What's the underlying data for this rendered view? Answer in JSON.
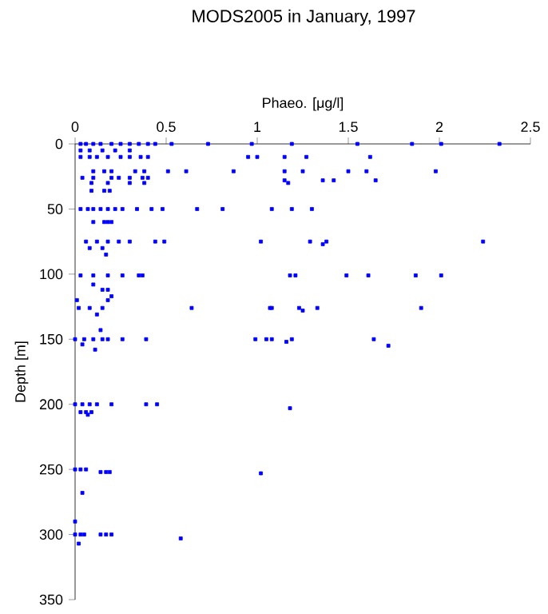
{
  "chart_data": {
    "type": "scatter",
    "title": "MODS2005 in January, 1997",
    "xlabel": "Phaeo. [μg/l]",
    "ylabel": "Depth [m]",
    "x": [
      0.03,
      0.06,
      0.1,
      0.14,
      0.2,
      0.25,
      0.3,
      0.35,
      0.4,
      0.44,
      0.53,
      0.73,
      0.97,
      1.19,
      1.55,
      1.85,
      2.01,
      2.33,
      0.03,
      0.08,
      0.15,
      0.22,
      0.3,
      0.03,
      0.08,
      0.12,
      0.18,
      0.25,
      0.3,
      0.36,
      0.4,
      0.95,
      1.0,
      1.15,
      1.27,
      1.62,
      0.1,
      0.16,
      0.2,
      0.33,
      0.38,
      0.51,
      0.61,
      0.87,
      1.15,
      1.25,
      1.5,
      1.6,
      1.98,
      0.04,
      0.1,
      0.2,
      0.24,
      0.3,
      0.37,
      0.4,
      1.15,
      1.36,
      1.42,
      1.65,
      0.09,
      0.18,
      0.3,
      0.38,
      1.17,
      0.09,
      0.16,
      0.19,
      0.03,
      0.07,
      0.1,
      0.14,
      0.18,
      0.22,
      0.26,
      0.34,
      0.42,
      0.48,
      0.67,
      0.81,
      1.08,
      1.19,
      1.3,
      0.1,
      0.16,
      0.18,
      0.2,
      0.06,
      0.12,
      0.18,
      0.24,
      0.3,
      0.44,
      0.49,
      1.02,
      1.29,
      1.38,
      1.36,
      2.24,
      0.08,
      0.15,
      0.17,
      0.03,
      0.1,
      0.18,
      0.26,
      0.35,
      0.37,
      1.18,
      1.21,
      1.49,
      1.61,
      1.87,
      2.01,
      0.1,
      0.15,
      0.18,
      0.2,
      0.01,
      0.02,
      0.08,
      0.15,
      0.18,
      0.64,
      1.07,
      1.23,
      1.08,
      1.33,
      1.25,
      1.9,
      0.12,
      0.0,
      0.05,
      0.1,
      0.15,
      0.18,
      0.26,
      0.39,
      0.99,
      1.05,
      1.16,
      1.08,
      1.19,
      1.64,
      1.72,
      0.11,
      0.14,
      0.04,
      0.0,
      0.04,
      0.08,
      0.12,
      0.2,
      0.39,
      0.45,
      1.18,
      0.03,
      0.06,
      0.09,
      0.07,
      0.0,
      0.03,
      0.06,
      0.14,
      0.17,
      0.19,
      1.02,
      0.04,
      0.0,
      0.0,
      0.03,
      0.05,
      0.14,
      0.17,
      0.2,
      0.58,
      0.02
    ],
    "values": [
      0,
      0,
      0,
      0,
      0,
      0,
      0,
      0,
      0,
      0,
      0,
      0,
      0,
      0,
      0,
      0,
      0,
      0,
      5,
      5,
      5,
      5,
      5,
      10,
      10,
      10,
      10,
      10,
      10,
      10,
      10,
      10,
      10,
      10,
      10,
      10,
      21,
      21,
      21,
      21,
      21,
      21,
      21,
      21,
      21,
      21,
      21,
      21,
      21,
      26,
      26,
      26,
      26,
      26,
      26,
      26,
      28,
      28,
      28,
      28,
      30,
      30,
      30,
      30,
      30,
      36,
      36,
      36,
      50,
      50,
      50,
      50,
      50,
      50,
      50,
      50,
      50,
      50,
      50,
      50,
      50,
      50,
      50,
      60,
      60,
      60,
      60,
      75,
      75,
      75,
      75,
      75,
      75,
      75,
      75,
      75,
      75,
      77,
      75,
      80,
      80,
      85,
      101,
      101,
      101,
      101,
      101,
      101,
      101,
      101,
      101,
      101,
      101,
      101,
      108,
      112,
      112,
      117,
      120,
      126,
      126,
      126,
      120,
      126,
      126,
      126,
      126,
      126,
      128,
      126,
      131,
      150,
      150,
      150,
      150,
      150,
      150,
      150,
      150,
      150,
      152,
      150,
      150,
      150,
      155,
      158,
      143,
      154,
      200,
      200,
      200,
      200,
      200,
      200,
      200,
      203,
      206,
      206,
      206,
      208,
      250,
      250,
      250,
      252,
      252,
      252,
      253,
      268,
      290,
      300,
      300,
      300,
      300,
      300,
      300,
      303,
      307
    ],
    "color": "#0000ff",
    "marker": "square",
    "xlim": [
      0,
      2.5
    ],
    "xticks": [
      0,
      0.5,
      1,
      1.5,
      2,
      2.5
    ],
    "ylim": [
      350,
      0
    ],
    "yticks": [
      0,
      50,
      100,
      150,
      200,
      250,
      300,
      350
    ],
    "grid": false
  }
}
